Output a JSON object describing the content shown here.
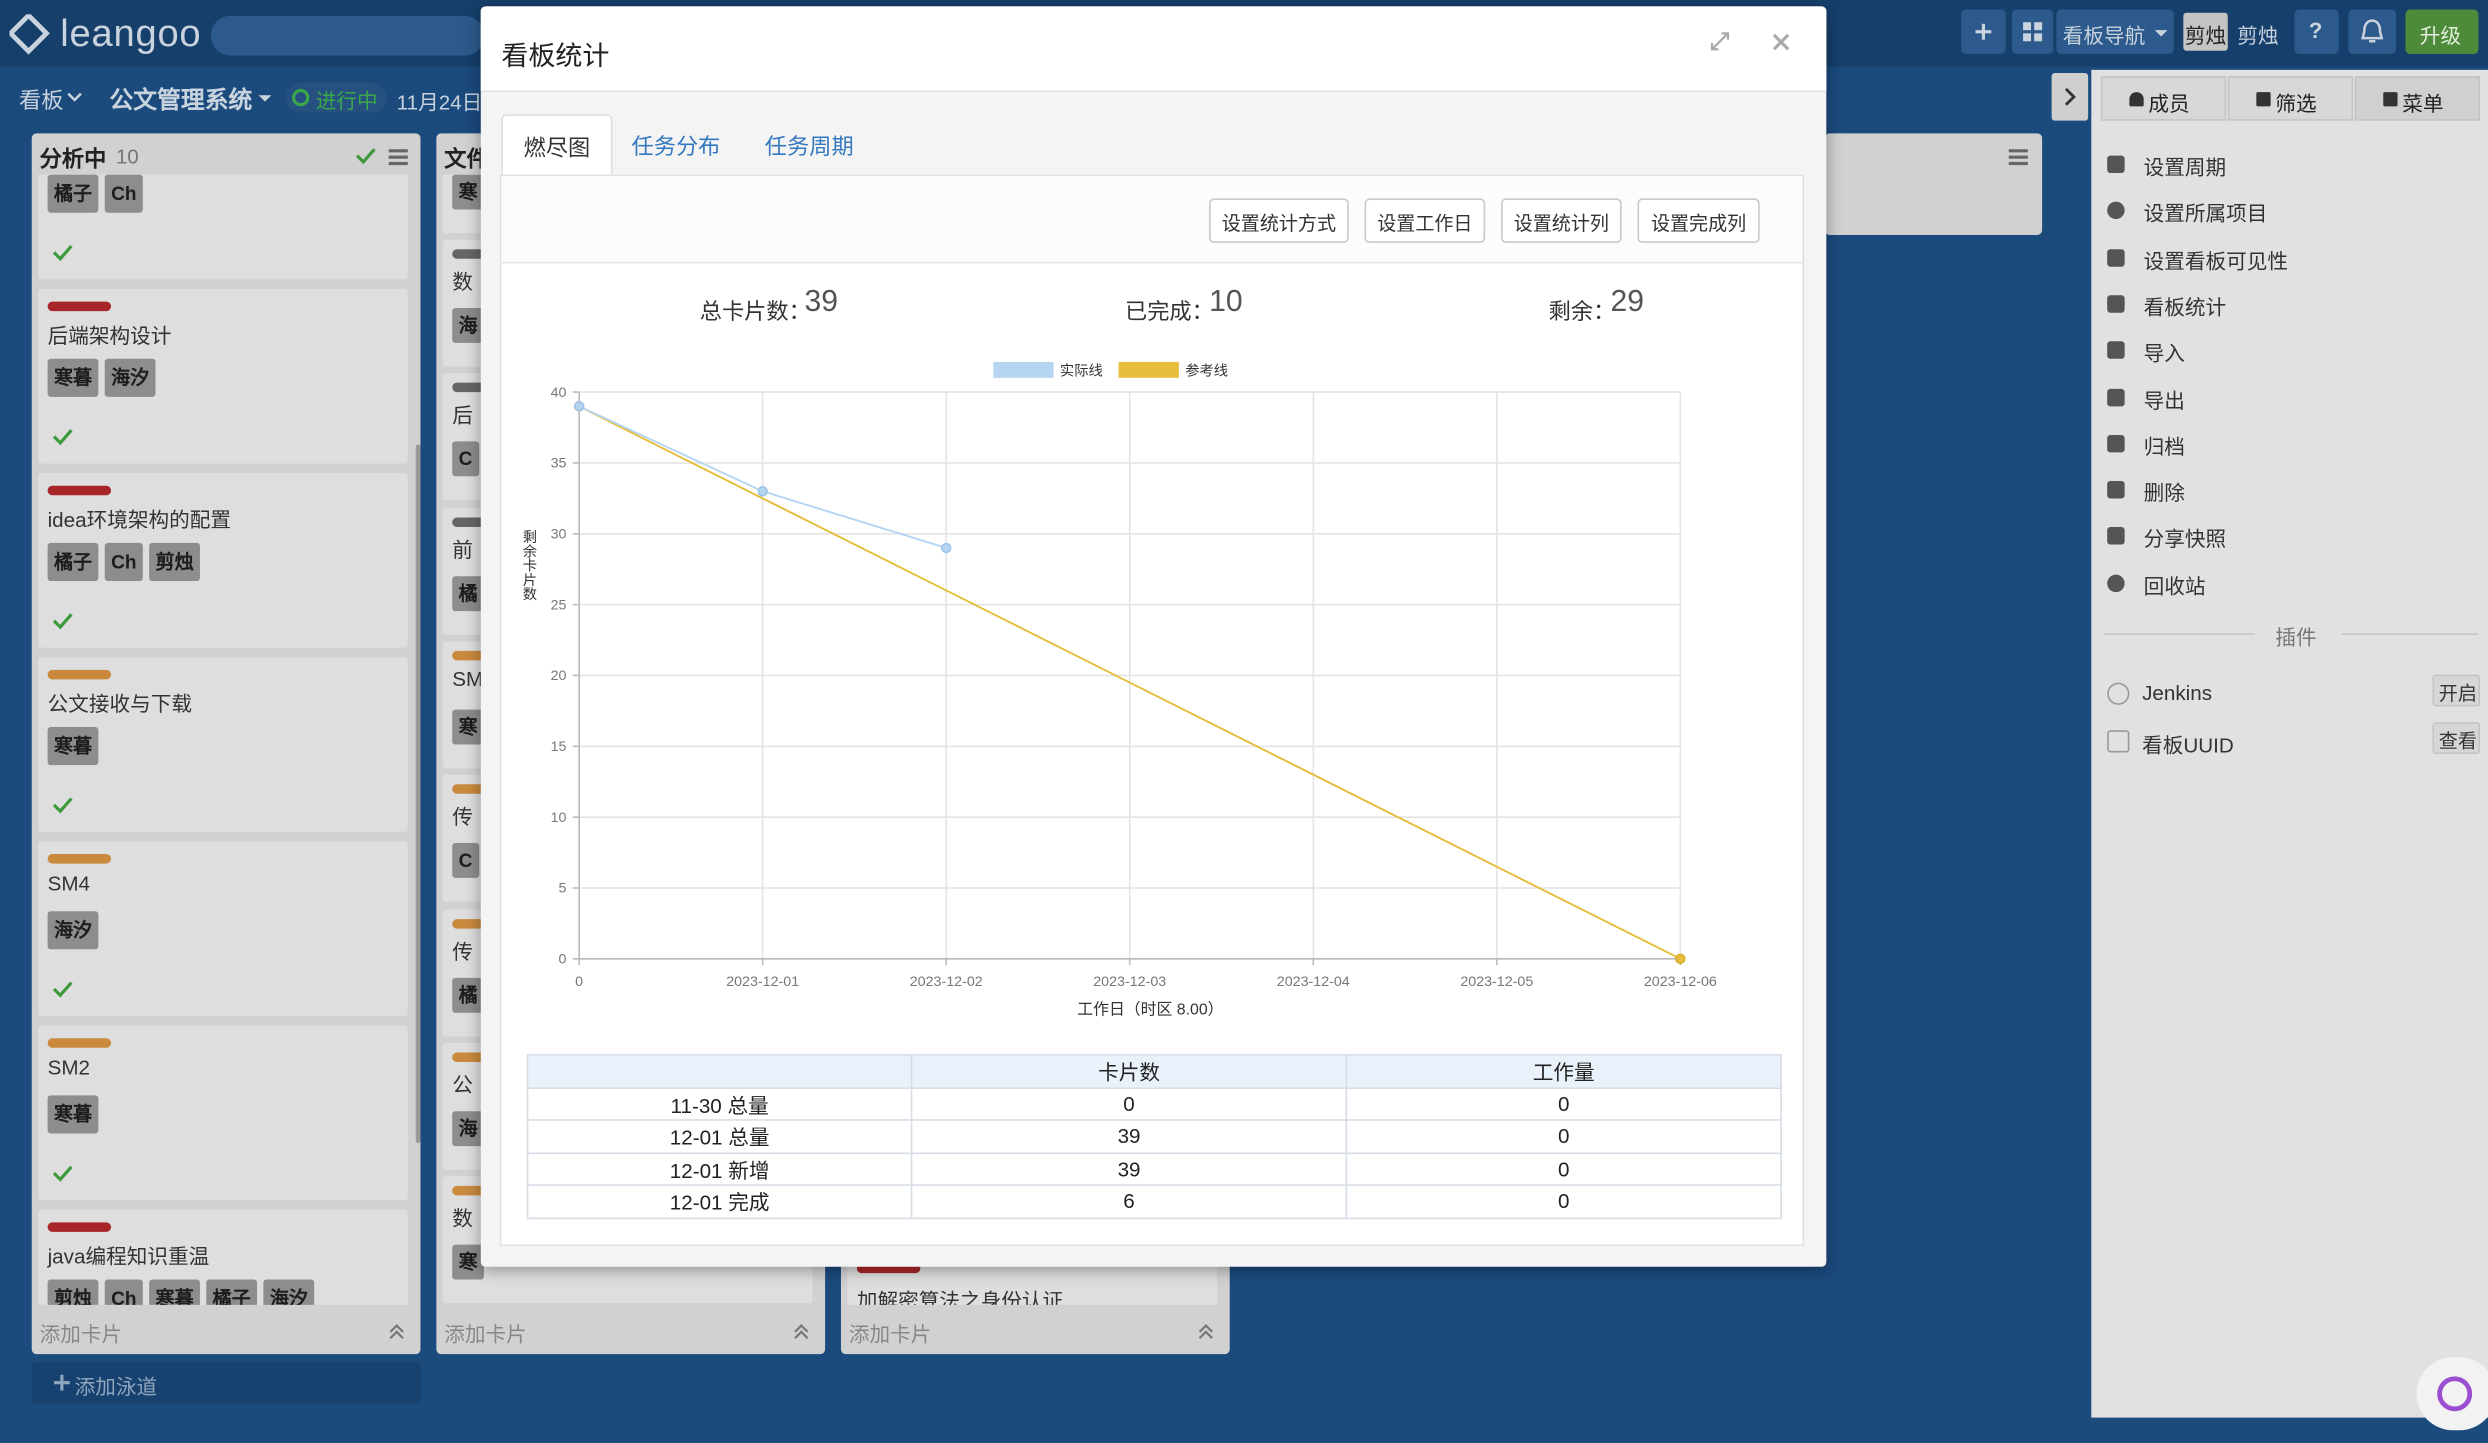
{
  "header": {
    "logo": "leangoo",
    "nav": "看板导航",
    "avatar": "剪烛",
    "user": "剪烛",
    "help": "?",
    "upgrade": "升级"
  },
  "subbar": {
    "board": "看板",
    "project": "公文管理系统",
    "status": "进行中",
    "date": "11月24日"
  },
  "lists": [
    {
      "title": "分析中",
      "count": 10,
      "footer": "添加卡片",
      "cards": [
        {
          "tags": [
            "橘子",
            "Ch"
          ]
        },
        {
          "label": "#a8262a",
          "title": "后端架构设计",
          "tags": [
            "寒暮",
            "海汐"
          ]
        },
        {
          "label": "#a8262a",
          "title": "idea环境架构的配置",
          "tags": [
            "橘子",
            "Ch",
            "剪烛"
          ]
        },
        {
          "label": "#c98a3e",
          "title": "公文接收与下载",
          "tags": [
            "寒暮"
          ]
        },
        {
          "label": "#c98a3e",
          "title": "SM4",
          "tags": [
            "海汐"
          ]
        },
        {
          "label": "#c98a3e",
          "title": "SM2",
          "tags": [
            "寒暮"
          ]
        },
        {
          "label": "#a8262a",
          "title": "java编程知识重温",
          "tags": [
            "剪烛",
            "Ch",
            "寒暮",
            "橘子",
            "海汐"
          ]
        }
      ]
    },
    {
      "title": "文件",
      "footer": "添加卡片",
      "cards": [
        {
          "tags": [
            "寒"
          ]
        },
        {
          "label": "#666666",
          "title": "数",
          "tags": [
            "海"
          ]
        },
        {
          "label": "#666666",
          "title": "后",
          "tags": [
            "C"
          ]
        },
        {
          "label": "#666666",
          "title": "前",
          "tags": [
            "橘"
          ]
        },
        {
          "label": "#c98a3e",
          "title": "SM",
          "tags": [
            "寒"
          ]
        },
        {
          "label": "#c98a3e",
          "title": "传",
          "tags": [
            "C"
          ]
        },
        {
          "label": "#c98a3e",
          "title": "传",
          "tags": [
            "橘"
          ]
        },
        {
          "label": "#c98a3e",
          "title": "公",
          "tags": [
            "海"
          ]
        },
        {
          "label": "#c98a3e",
          "title": "数",
          "tags": [
            "寒"
          ]
        }
      ]
    },
    {
      "footer": "添加卡片",
      "cards": [
        {
          "label": "#a8262a",
          "title": "加解密算法之身份认证"
        }
      ]
    }
  ],
  "add_lane": "添加泳道",
  "panel": {
    "tabs": [
      "成员",
      "筛选",
      "菜单"
    ],
    "menu": [
      "设置周期",
      "设置所属项目",
      "设置看板可见性",
      "看板统计",
      "导入",
      "导出",
      "归档",
      "删除",
      "分享快照",
      "回收站"
    ],
    "plugin_title": "插件",
    "plugins": [
      {
        "name": "Jenkins",
        "action": "开启"
      },
      {
        "name": "看板UUID",
        "action": "查看"
      }
    ]
  },
  "modal": {
    "title": "看板统计",
    "tabs": [
      "燃尽图",
      "任务分布",
      "任务周期"
    ],
    "buttons": [
      "设置统计方式",
      "设置工作日",
      "设置统计列",
      "设置完成列"
    ],
    "stats": [
      {
        "label": "总卡片数：",
        "value": 39
      },
      {
        "label": "已完成：",
        "value": 10
      },
      {
        "label": "剩余：",
        "value": 29
      }
    ],
    "table": {
      "headers": [
        "卡片数",
        "工作量"
      ],
      "rows": [
        [
          "11-30 总量",
          0,
          0
        ],
        [
          "12-01 总量",
          39,
          0
        ],
        [
          "12-01 新增",
          39,
          0
        ],
        [
          "12-01 完成",
          6,
          0
        ]
      ]
    }
  },
  "chart_data": {
    "type": "line",
    "ylabel": "剩余卡片数",
    "xlabel": "工作日（时区 8.00）",
    "categories": [
      "0",
      "2023-12-01",
      "2023-12-02",
      "2023-12-03",
      "2023-12-04",
      "2023-12-05",
      "2023-12-06"
    ],
    "series": [
      {
        "name": "实际线",
        "color": "#b5d5f3",
        "values": [
          39,
          33,
          29,
          null,
          null,
          null,
          null
        ]
      },
      {
        "name": "参考线",
        "color": "#e6bd3c",
        "values": [
          39,
          32.5,
          26,
          19.5,
          13,
          6.5,
          0
        ]
      }
    ],
    "ylim": [
      0,
      40
    ],
    "yticks": [
      0,
      5,
      10,
      15,
      20,
      25,
      30,
      35,
      40
    ],
    "grid": true,
    "legend": "top"
  }
}
